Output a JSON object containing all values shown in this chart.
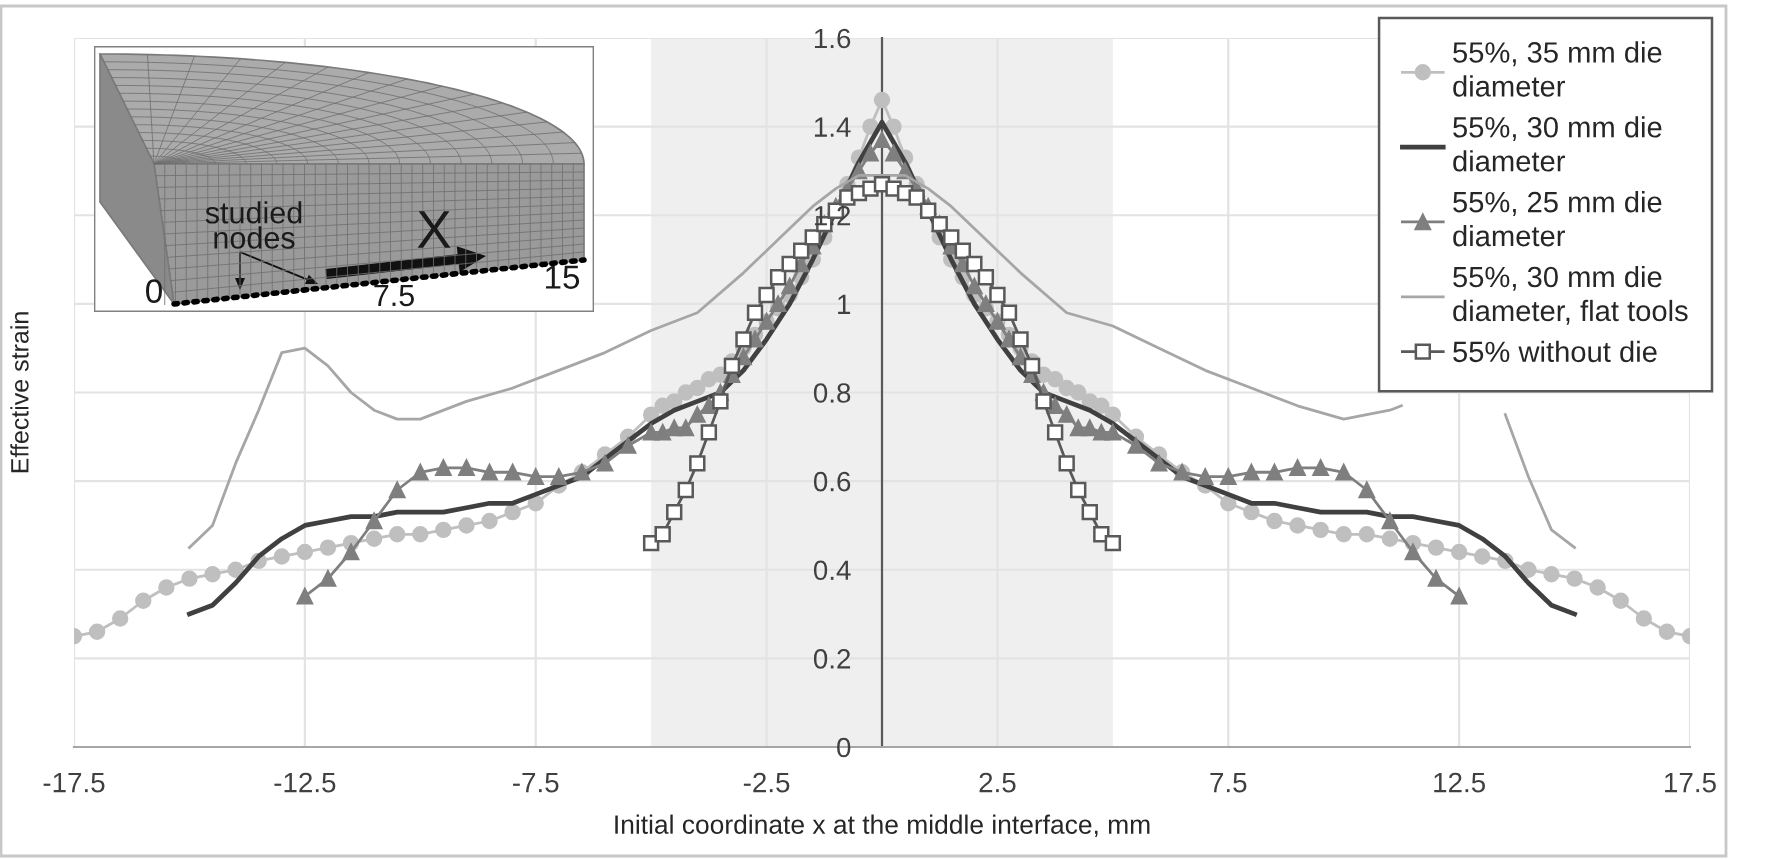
{
  "chart_data": {
    "type": "line",
    "xlabel": "Initial coordinate x at the middle interface, mm",
    "ylabel": "Effective strain",
    "xlim": [
      -17.5,
      17.5
    ],
    "xticks": [
      -17.5,
      -12.5,
      -7.5,
      -2.5,
      2.5,
      7.5,
      12.5,
      17.5
    ],
    "ylim": [
      0,
      1.6
    ],
    "yticks": [
      0,
      0.2,
      0.4,
      0.6,
      0.8,
      1,
      1.2,
      1.4,
      1.6
    ],
    "grid": true,
    "legend": "top right",
    "bands": [
      {
        "axis": "x",
        "from": -5,
        "to": 5,
        "color": "#efefef"
      }
    ],
    "annotations": [
      "studied nodes",
      "X",
      "0",
      "7.5",
      "15"
    ],
    "series": [
      {
        "name": "55%, 35 mm die diameter",
        "color": "#bfbfbf",
        "marker": "circle",
        "x": [
          -17.5,
          -17,
          -16.5,
          -16,
          -15.5,
          -15,
          -14.5,
          -14,
          -13.5,
          -13,
          -12.5,
          -12,
          -11.5,
          -11,
          -10.5,
          -10,
          -9.5,
          -9,
          -8.5,
          -8,
          -7.5,
          -7,
          -6.5,
          -6,
          -5.5,
          -5,
          -4.75,
          -4.5,
          -4.25,
          -4,
          -3.75,
          -3.5,
          -3.25,
          -3,
          -2.75,
          -2.5,
          -2.25,
          -2,
          -1.75,
          -1.5,
          -1.25,
          -1,
          -0.75,
          -0.5,
          -0.25,
          0,
          0.25,
          0.5,
          0.75,
          1,
          1.25,
          1.5,
          1.75,
          2,
          2.25,
          2.5,
          2.75,
          3,
          3.25,
          3.5,
          3.75,
          4,
          4.25,
          4.5,
          4.75,
          5,
          5.5,
          6,
          6.5,
          7,
          7.5,
          8,
          8.5,
          9,
          9.5,
          10,
          10.5,
          11,
          11.5,
          12,
          12.5,
          13,
          13.5,
          14,
          14.5,
          15,
          15.5,
          16,
          16.5,
          17,
          17.5
        ],
        "values": [
          0.25,
          0.26,
          0.29,
          0.33,
          0.36,
          0.38,
          0.39,
          0.4,
          0.42,
          0.43,
          0.44,
          0.45,
          0.46,
          0.47,
          0.48,
          0.48,
          0.49,
          0.5,
          0.51,
          0.53,
          0.55,
          0.59,
          0.62,
          0.66,
          0.7,
          0.75,
          0.77,
          0.78,
          0.8,
          0.81,
          0.83,
          0.84,
          0.87,
          0.9,
          0.93,
          0.96,
          0.99,
          1.02,
          1.06,
          1.1,
          1.15,
          1.21,
          1.27,
          1.33,
          1.4,
          1.46,
          1.4,
          1.33,
          1.27,
          1.21,
          1.15,
          1.1,
          1.06,
          1.02,
          0.99,
          0.96,
          0.93,
          0.9,
          0.87,
          0.84,
          0.83,
          0.81,
          0.8,
          0.78,
          0.77,
          0.75,
          0.7,
          0.66,
          0.62,
          0.59,
          0.55,
          0.53,
          0.51,
          0.5,
          0.49,
          0.48,
          0.48,
          0.47,
          0.46,
          0.45,
          0.44,
          0.43,
          0.42,
          0.4,
          0.39,
          0.38,
          0.36,
          0.33,
          0.29,
          0.26,
          0.25
        ]
      },
      {
        "name": "55%, 30 mm die diameter",
        "color": "#404040",
        "x": [
          -15,
          -14.5,
          -14,
          -13.5,
          -13,
          -12.5,
          -12,
          -11.5,
          -11,
          -10.5,
          -10,
          -9.5,
          -9,
          -8.5,
          -8,
          -7.5,
          -7,
          -6.5,
          -6,
          -5.5,
          -5,
          -4.5,
          -4,
          -3.5,
          -3,
          -2.5,
          -2,
          -1.5,
          -1,
          -0.5,
          0,
          0.5,
          1,
          1.5,
          2,
          2.5,
          3,
          3.5,
          4,
          4.5,
          5,
          5.5,
          6,
          6.5,
          7,
          7.5,
          8,
          8.5,
          9,
          9.5,
          10,
          10.5,
          11,
          11.5,
          12,
          12.5,
          13,
          13.5,
          14,
          14.5,
          15
        ],
        "values": [
          0.3,
          0.32,
          0.37,
          0.43,
          0.47,
          0.5,
          0.51,
          0.52,
          0.52,
          0.53,
          0.53,
          0.53,
          0.54,
          0.55,
          0.55,
          0.57,
          0.59,
          0.61,
          0.65,
          0.69,
          0.73,
          0.76,
          0.78,
          0.8,
          0.85,
          0.92,
          1.0,
          1.1,
          1.21,
          1.32,
          1.41,
          1.32,
          1.21,
          1.1,
          1.0,
          0.92,
          0.85,
          0.8,
          0.78,
          0.76,
          0.73,
          0.69,
          0.65,
          0.61,
          0.59,
          0.57,
          0.55,
          0.55,
          0.54,
          0.53,
          0.53,
          0.53,
          0.52,
          0.52,
          0.51,
          0.5,
          0.47,
          0.43,
          0.37,
          0.32,
          0.3
        ]
      },
      {
        "name": "55%, 25 mm die diameter",
        "color": "#7f7f7f",
        "marker": "triangle",
        "x": [
          -12.5,
          -12,
          -11.5,
          -11,
          -10.5,
          -10,
          -9.5,
          -9,
          -8.5,
          -8,
          -7.5,
          -7,
          -6.5,
          -6,
          -5.5,
          -5,
          -4.75,
          -4.5,
          -4.25,
          -4,
          -3.75,
          -3.5,
          -3.25,
          -3,
          -2.75,
          -2.5,
          -2.25,
          -2,
          -1.75,
          -1.5,
          -1.25,
          -1,
          -0.75,
          -0.5,
          -0.25,
          0,
          0.25,
          0.5,
          0.75,
          1,
          1.25,
          1.5,
          1.75,
          2,
          2.25,
          2.5,
          2.75,
          3,
          3.25,
          3.5,
          3.75,
          4,
          4.25,
          4.5,
          4.75,
          5,
          5.5,
          6,
          6.5,
          7,
          7.5,
          8,
          8.5,
          9,
          9.5,
          10,
          10.5,
          11,
          11.5,
          12,
          12.5
        ],
        "values": [
          0.34,
          0.38,
          0.44,
          0.51,
          0.58,
          0.62,
          0.63,
          0.63,
          0.62,
          0.62,
          0.61,
          0.61,
          0.62,
          0.64,
          0.68,
          0.71,
          0.71,
          0.72,
          0.72,
          0.75,
          0.77,
          0.8,
          0.84,
          0.88,
          0.92,
          0.96,
          1.0,
          1.04,
          1.09,
          1.13,
          1.18,
          1.22,
          1.26,
          1.3,
          1.34,
          1.37,
          1.34,
          1.3,
          1.26,
          1.22,
          1.18,
          1.13,
          1.09,
          1.04,
          1.0,
          0.96,
          0.92,
          0.88,
          0.84,
          0.8,
          0.77,
          0.75,
          0.72,
          0.72,
          0.71,
          0.71,
          0.68,
          0.64,
          0.62,
          0.61,
          0.61,
          0.62,
          0.62,
          0.63,
          0.63,
          0.62,
          0.58,
          0.51,
          0.44,
          0.38,
          0.34
        ]
      },
      {
        "name": "55%, 30 mm die diameter, flat tools",
        "color": "#a6a6a6",
        "x": [
          -15,
          -14.5,
          -14,
          -13.5,
          -13,
          -12.5,
          -12,
          -11.5,
          -11,
          -10.5,
          -10,
          -9,
          -8,
          -7,
          -6,
          -5,
          -4,
          -3,
          -2,
          -1.5,
          -1,
          -0.5,
          0,
          0.5,
          1,
          1.5,
          2,
          3,
          4,
          5,
          6,
          7,
          8,
          9,
          10,
          10.5,
          11,
          11.25,
          12.4,
          13.5,
          14,
          14.5,
          15
        ],
        "values": [
          0.45,
          0.5,
          0.64,
          0.76,
          0.89,
          0.9,
          0.86,
          0.8,
          0.76,
          0.74,
          0.74,
          0.78,
          0.81,
          0.85,
          0.89,
          0.94,
          0.98,
          1.07,
          1.17,
          1.22,
          1.26,
          1.29,
          1.29,
          1.29,
          1.26,
          1.22,
          1.17,
          1.07,
          0.98,
          0.95,
          0.9,
          0.85,
          0.81,
          0.77,
          0.74,
          0.75,
          0.76,
          0.77,
          null,
          0.75,
          0.61,
          0.49,
          0.45
        ]
      },
      {
        "name": "55% without die",
        "color": "#595959",
        "marker": "square",
        "x": [
          -5,
          -4.75,
          -4.5,
          -4.25,
          -4,
          -3.75,
          -3.5,
          -3.25,
          -3,
          -2.75,
          -2.5,
          -2.25,
          -2,
          -1.75,
          -1.5,
          -1.25,
          -1,
          -0.75,
          -0.5,
          -0.25,
          0,
          0.25,
          0.5,
          0.75,
          1,
          1.25,
          1.5,
          1.75,
          2,
          2.25,
          2.5,
          2.75,
          3,
          3.25,
          3.5,
          3.75,
          4,
          4.25,
          4.5,
          4.75,
          5
        ],
        "values": [
          0.46,
          0.48,
          0.53,
          0.58,
          0.64,
          0.71,
          0.78,
          0.86,
          0.92,
          0.98,
          1.02,
          1.06,
          1.09,
          1.12,
          1.15,
          1.18,
          1.21,
          1.24,
          1.25,
          1.26,
          1.27,
          1.26,
          1.25,
          1.24,
          1.21,
          1.18,
          1.15,
          1.12,
          1.09,
          1.06,
          1.02,
          0.98,
          0.92,
          0.86,
          0.78,
          0.71,
          0.64,
          0.58,
          0.53,
          0.48,
          0.46
        ]
      }
    ]
  }
}
